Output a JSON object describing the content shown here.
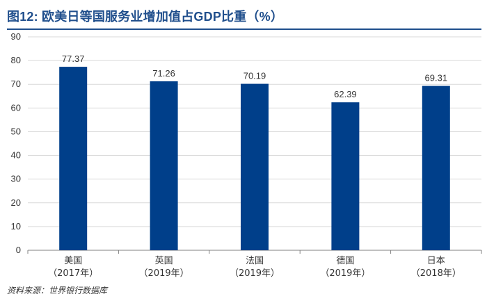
{
  "title": "图12: 欧美日等国服务业增加值占GDP比重（%）",
  "source": "资料来源：世界银行数据库",
  "chart_data": {
    "type": "bar",
    "categories": [
      [
        "美国",
        "（2017年）"
      ],
      [
        "英国",
        "（2019年）"
      ],
      [
        "法国",
        "（2019年）"
      ],
      [
        "德国",
        "（2019年）"
      ],
      [
        "日本",
        "（2018年）"
      ]
    ],
    "values": [
      77.37,
      71.26,
      70.19,
      62.39,
      69.31
    ],
    "value_labels": [
      "77.37",
      "71.26",
      "70.19",
      "62.39",
      "69.31"
    ],
    "ylim": [
      0,
      90
    ],
    "yticks": [
      0,
      10,
      20,
      30,
      40,
      50,
      60,
      70,
      80,
      90
    ],
    "grid": true,
    "bar_color": "#003f8a",
    "grid_color": "#d9d9d9",
    "axis_color": "#808080",
    "xlabel": "",
    "ylabel": ""
  }
}
